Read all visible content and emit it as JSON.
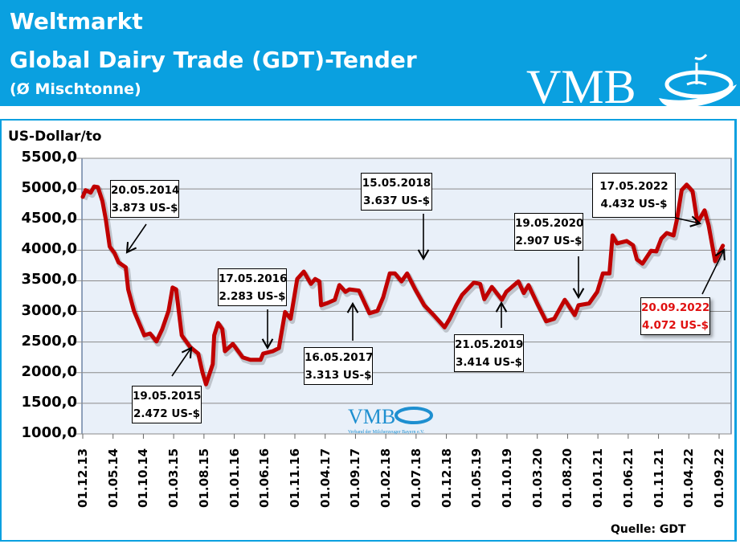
{
  "header": {
    "line1": "Weltmarkt",
    "line2": "Global Dairy Trade (GDT)-Tender",
    "line3": "(Ø Mischtonne)",
    "logo_text": "VMB",
    "logo_color": "#ffffff"
  },
  "watermark": {
    "logo_text": "VMB",
    "subtitle": "Verband der Milcherzeuger Bayern e.V."
  },
  "source": "Quelle: GDT",
  "chart_data": {
    "type": "line",
    "ylabel": "US-Dollar/to",
    "ylim": [
      1000,
      5500
    ],
    "yticks": [
      "5500,0",
      "5000,0",
      "4500,0",
      "4000,0",
      "3500,0",
      "3000,0",
      "2500,0",
      "2000,0",
      "1500,0",
      "1000,0"
    ],
    "ytick_values": [
      5500,
      5000,
      4500,
      4000,
      3500,
      3000,
      2500,
      2000,
      1500,
      1000
    ],
    "xlim": [
      "2013-12-01",
      "2022-09-01"
    ],
    "xticks": [
      "01.12.13",
      "01.05.14",
      "01.10.14",
      "01.03.15",
      "01.08.15",
      "01.01.16",
      "01.06.16",
      "01.11.16",
      "01.04.17",
      "01.09.17",
      "01.02.18",
      "01.07.18",
      "01.12.18",
      "01.05.19",
      "01.10.19",
      "01.03.20",
      "01.08.20",
      "01.01.21",
      "01.06.21",
      "01.11.21",
      "01.04.22",
      "01.09.22"
    ],
    "grid": true,
    "line_color": "#c00000",
    "plot_background": "#e9f0f9",
    "series": [
      {
        "points": [
          [
            "2013-12-01",
            4870
          ],
          [
            "2013-12-15",
            4980
          ],
          [
            "2014-01-10",
            4940
          ],
          [
            "2014-01-27",
            5040
          ],
          [
            "2014-02-15",
            5030
          ],
          [
            "2014-03-10",
            4800
          ],
          [
            "2014-03-27",
            4500
          ],
          [
            "2014-04-15",
            4060
          ],
          [
            "2014-05-10",
            3950
          ],
          [
            "2014-05-30",
            3800
          ],
          [
            "2014-07-05",
            3720
          ],
          [
            "2014-07-17",
            3360
          ],
          [
            "2014-08-15",
            3010
          ],
          [
            "2014-10-06",
            2610
          ],
          [
            "2014-11-04",
            2640
          ],
          [
            "2014-12-06",
            2510
          ],
          [
            "2015-01-04",
            2710
          ],
          [
            "2015-02-05",
            3010
          ],
          [
            "2015-02-25",
            3390
          ],
          [
            "2015-03-15",
            3360
          ],
          [
            "2015-04-12",
            2610
          ],
          [
            "2015-05-24",
            2420
          ],
          [
            "2015-07-04",
            2310
          ],
          [
            "2015-07-25",
            2010
          ],
          [
            "2015-08-12",
            1810
          ],
          [
            "2015-09-15",
            2140
          ],
          [
            "2015-09-22",
            2610
          ],
          [
            "2015-10-12",
            2810
          ],
          [
            "2015-11-02",
            2710
          ],
          [
            "2015-11-15",
            2350
          ],
          [
            "2015-12-25",
            2470
          ],
          [
            "2016-02-12",
            2250
          ],
          [
            "2016-03-22",
            2210
          ],
          [
            "2016-05-12",
            2210
          ],
          [
            "2016-05-25",
            2310
          ],
          [
            "2016-07-12",
            2350
          ],
          [
            "2016-08-12",
            2400
          ],
          [
            "2016-09-12",
            2990
          ],
          [
            "2016-10-10",
            2880
          ],
          [
            "2016-11-12",
            3530
          ],
          [
            "2016-12-15",
            3650
          ],
          [
            "2017-01-20",
            3450
          ],
          [
            "2017-02-10",
            3530
          ],
          [
            "2017-03-04",
            3490
          ],
          [
            "2017-03-12",
            3100
          ],
          [
            "2017-04-15",
            3140
          ],
          [
            "2017-05-20",
            3190
          ],
          [
            "2017-06-12",
            3430
          ],
          [
            "2017-07-12",
            3320
          ],
          [
            "2017-08-01",
            3360
          ],
          [
            "2017-09-18",
            3340
          ],
          [
            "2017-11-10",
            2970
          ],
          [
            "2017-12-20",
            3010
          ],
          [
            "2018-01-18",
            3230
          ],
          [
            "2018-02-20",
            3620
          ],
          [
            "2018-03-18",
            3620
          ],
          [
            "2018-04-20",
            3490
          ],
          [
            "2018-05-18",
            3620
          ],
          [
            "2018-06-28",
            3360
          ],
          [
            "2018-08-12",
            3100
          ],
          [
            "2018-10-01",
            2930
          ],
          [
            "2018-11-22",
            2740
          ],
          [
            "2018-12-18",
            2880
          ],
          [
            "2019-01-20",
            3100
          ],
          [
            "2019-02-18",
            3270
          ],
          [
            "2019-04-18",
            3470
          ],
          [
            "2019-05-20",
            3450
          ],
          [
            "2019-06-10",
            3200
          ],
          [
            "2019-07-18",
            3400
          ],
          [
            "2019-09-06",
            3190
          ],
          [
            "2019-09-28",
            3320
          ],
          [
            "2019-11-28",
            3490
          ],
          [
            "2019-12-25",
            3300
          ],
          [
            "2020-01-18",
            3430
          ],
          [
            "2020-03-06",
            3100
          ],
          [
            "2020-04-15",
            2840
          ],
          [
            "2020-05-26",
            2880
          ],
          [
            "2020-07-18",
            3190
          ],
          [
            "2020-09-06",
            2940
          ],
          [
            "2020-09-25",
            3100
          ],
          [
            "2020-11-17",
            3130
          ],
          [
            "2020-12-28",
            3320
          ],
          [
            "2021-01-25",
            3620
          ],
          [
            "2021-02-27",
            3620
          ],
          [
            "2021-03-15",
            4240
          ],
          [
            "2021-04-06",
            4110
          ],
          [
            "2021-05-25",
            4150
          ],
          [
            "2021-06-26",
            4080
          ],
          [
            "2021-07-15",
            3850
          ],
          [
            "2021-08-12",
            3780
          ],
          [
            "2021-09-24",
            3990
          ],
          [
            "2021-10-21",
            3980
          ],
          [
            "2021-11-15",
            4190
          ],
          [
            "2021-12-12",
            4280
          ],
          [
            "2022-01-15",
            4240
          ],
          [
            "2022-02-01",
            4500
          ],
          [
            "2022-02-25",
            4980
          ],
          [
            "2022-03-22",
            5070
          ],
          [
            "2022-04-21",
            4960
          ],
          [
            "2022-05-15",
            4450
          ],
          [
            "2022-06-20",
            4650
          ],
          [
            "2022-07-10",
            4410
          ],
          [
            "2022-08-12",
            3820
          ],
          [
            "2022-09-20",
            4072
          ]
        ]
      }
    ],
    "annotations": [
      {
        "date": "20.05.2014",
        "value": "3.873 US-$"
      },
      {
        "date": "19.05.2015",
        "value": "2.472 US-$"
      },
      {
        "date": "17.05.2016",
        "value": "2.283 US-$"
      },
      {
        "date": "16.05.2017",
        "value": "3.313 US-$"
      },
      {
        "date": "15.05.2018",
        "value": "3.637 US-$"
      },
      {
        "date": "21.05.2019",
        "value": "3.414 US-$"
      },
      {
        "date": "19.05.2020",
        "value": "2.907 US-$"
      },
      {
        "date": "17.05.2022",
        "value": "4.432 US-$"
      },
      {
        "date": "20.09.2022",
        "value": "4.072 US-$",
        "color": "#e01010"
      }
    ]
  }
}
